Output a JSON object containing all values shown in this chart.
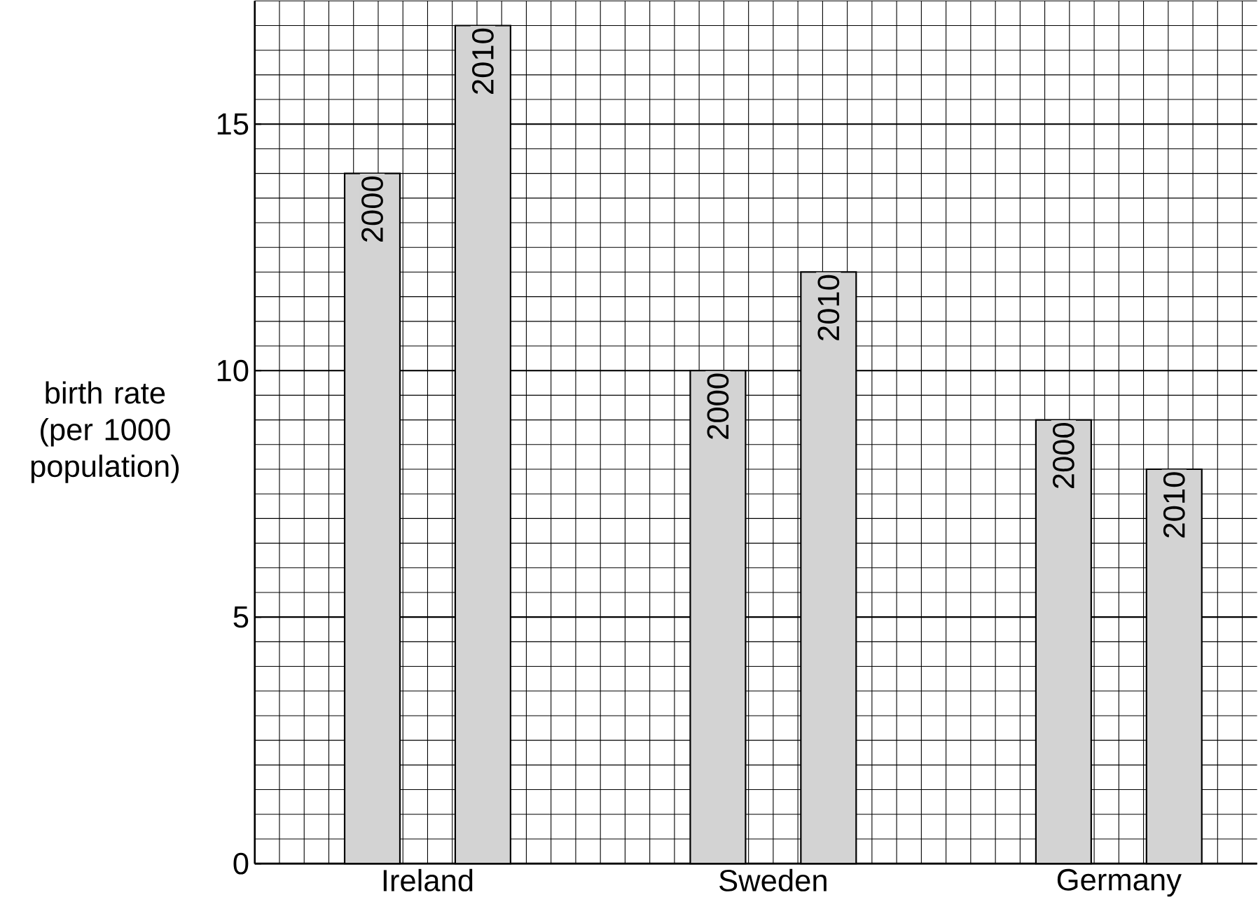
{
  "chart_data": {
    "type": "bar",
    "ylabel": "birth rate (per 1000 population)",
    "categories": [
      "Ireland",
      "Sweden",
      "Germany"
    ],
    "series": [
      {
        "name": "2000",
        "color": "#d3d3d3",
        "values": [
          14,
          10,
          9
        ]
      },
      {
        "name": "2010",
        "color": "#d3d3d3",
        "values": [
          17,
          12,
          8
        ]
      }
    ],
    "ylim": [
      0,
      17.5
    ],
    "yticks": [
      0,
      5,
      10,
      15
    ],
    "grid": true
  }
}
